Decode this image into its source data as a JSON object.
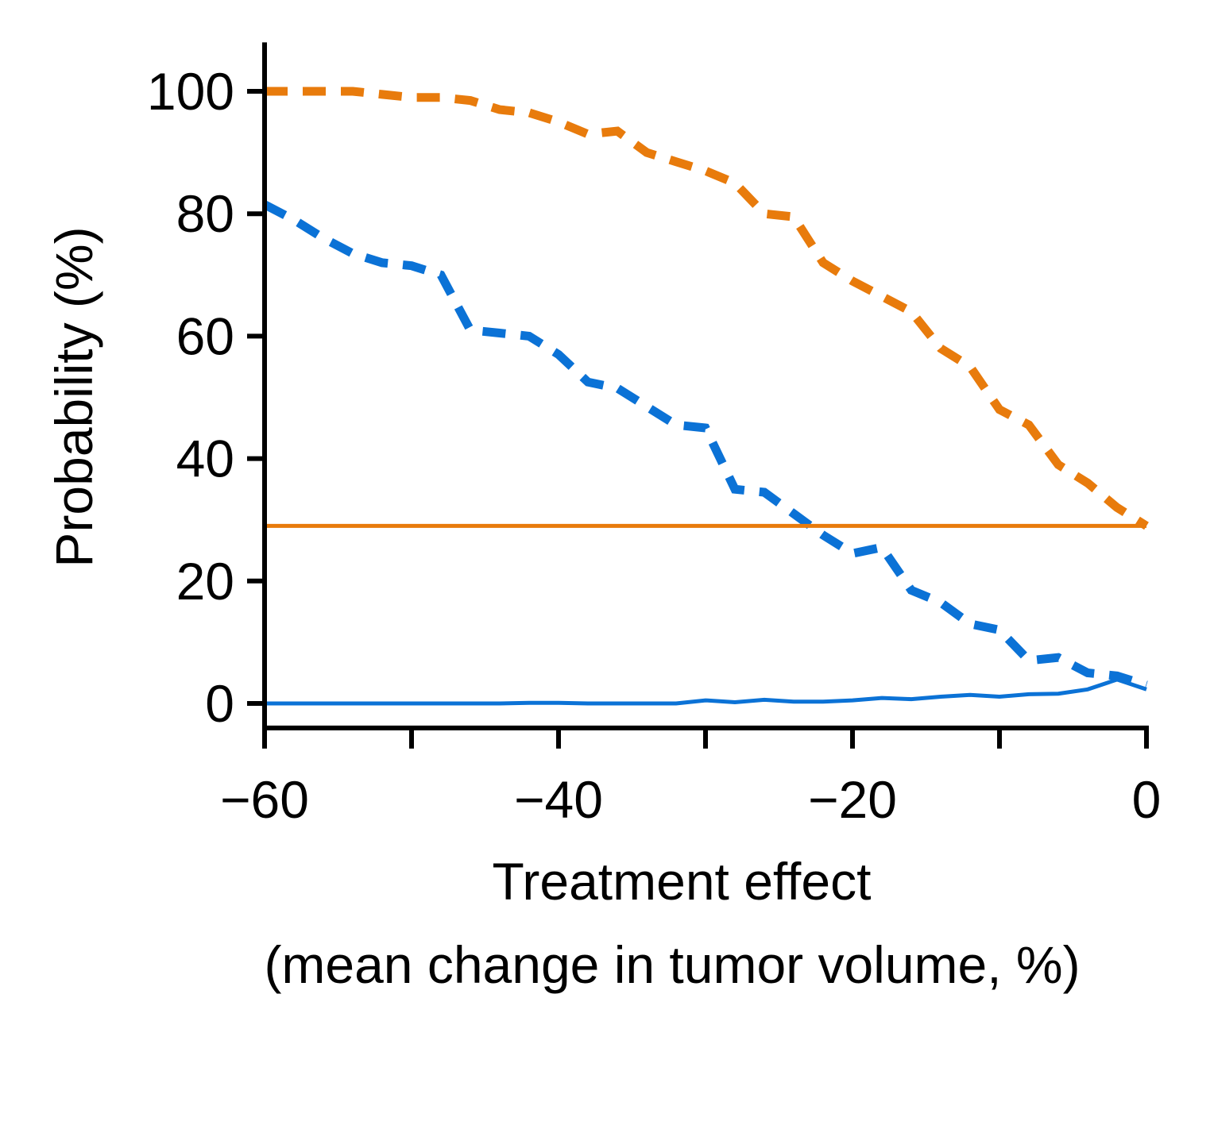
{
  "chart_data": {
    "type": "line",
    "title": "",
    "xlabel": "Treatment effect",
    "xlabel_sub": "(mean change in tumor volume, %)",
    "ylabel": "Probability (%)",
    "xlim": [
      -60,
      0
    ],
    "ylim": [
      -4,
      108
    ],
    "x_ticks": [
      -60,
      -50,
      -40,
      -30,
      -20,
      -10,
      0
    ],
    "x_tick_labels": [
      {
        "value": -60,
        "label": "−60"
      },
      {
        "value": -40,
        "label": "−40"
      },
      {
        "value": -20,
        "label": "−20"
      },
      {
        "value": 0,
        "label": "0"
      }
    ],
    "y_ticks": [
      0,
      20,
      40,
      60,
      80,
      100
    ],
    "y_tick_labels": [
      "0",
      "20",
      "40",
      "60",
      "80",
      "100"
    ],
    "grid": false,
    "legend": "none",
    "series": [
      {
        "color": "#e87b0c",
        "style": "dashed",
        "x": [
          -60,
          -58,
          -56,
          -54,
          -52,
          -50,
          -48,
          -46,
          -44,
          -42,
          -40,
          -38,
          -36,
          -34,
          -32,
          -30,
          -28,
          -26,
          -24,
          -22,
          -20,
          -18,
          -16,
          -14,
          -12,
          -10,
          -8,
          -6,
          -4,
          -2,
          0
        ],
        "values": [
          100,
          100,
          100,
          100,
          99.5,
          99,
          99,
          98.5,
          97,
          96.5,
          95,
          93,
          93.5,
          90,
          88.5,
          87,
          85,
          80,
          79.5,
          72,
          69,
          66.5,
          64,
          58,
          55,
          48,
          45.5,
          39,
          36,
          32,
          29
        ]
      },
      {
        "color": "#0b72d6",
        "style": "dashed",
        "x": [
          -60,
          -58,
          -56,
          -54,
          -52,
          -50,
          -48,
          -46,
          -44,
          -42,
          -40,
          -38,
          -36,
          -34,
          -32,
          -30,
          -28,
          -26,
          -24,
          -22,
          -20,
          -18,
          -16,
          -14,
          -12,
          -10,
          -8,
          -6,
          -4,
          -2,
          0
        ],
        "values": [
          81.5,
          79,
          76,
          73.5,
          72,
          71.5,
          70,
          61,
          60.5,
          60,
          57,
          52.5,
          51.5,
          48.5,
          45.5,
          45,
          35,
          34.5,
          31,
          27.5,
          24.5,
          25.5,
          18.5,
          16.5,
          13,
          12,
          7,
          7.5,
          5,
          4.5,
          3
        ]
      },
      {
        "color": "#e87b0c",
        "style": "solid",
        "x": [
          -60,
          0
        ],
        "values": [
          29,
          29
        ]
      },
      {
        "color": "#0b72d6",
        "style": "solid",
        "x": [
          -60,
          -58,
          -56,
          -54,
          -52,
          -50,
          -48,
          -46,
          -44,
          -42,
          -40,
          -38,
          -36,
          -34,
          -32,
          -30,
          -28,
          -26,
          -24,
          -22,
          -20,
          -18,
          -16,
          -14,
          -12,
          -10,
          -8,
          -6,
          -4,
          -2,
          0
        ],
        "values": [
          0,
          0,
          0,
          0,
          0,
          0,
          0,
          0,
          0,
          0.1,
          0.1,
          0,
          0,
          0,
          0,
          0.5,
          0.2,
          0.6,
          0.3,
          0.3,
          0.5,
          0.9,
          0.7,
          1.1,
          1.4,
          1.1,
          1.5,
          1.6,
          2.3,
          3.9,
          2.3
        ]
      }
    ]
  }
}
